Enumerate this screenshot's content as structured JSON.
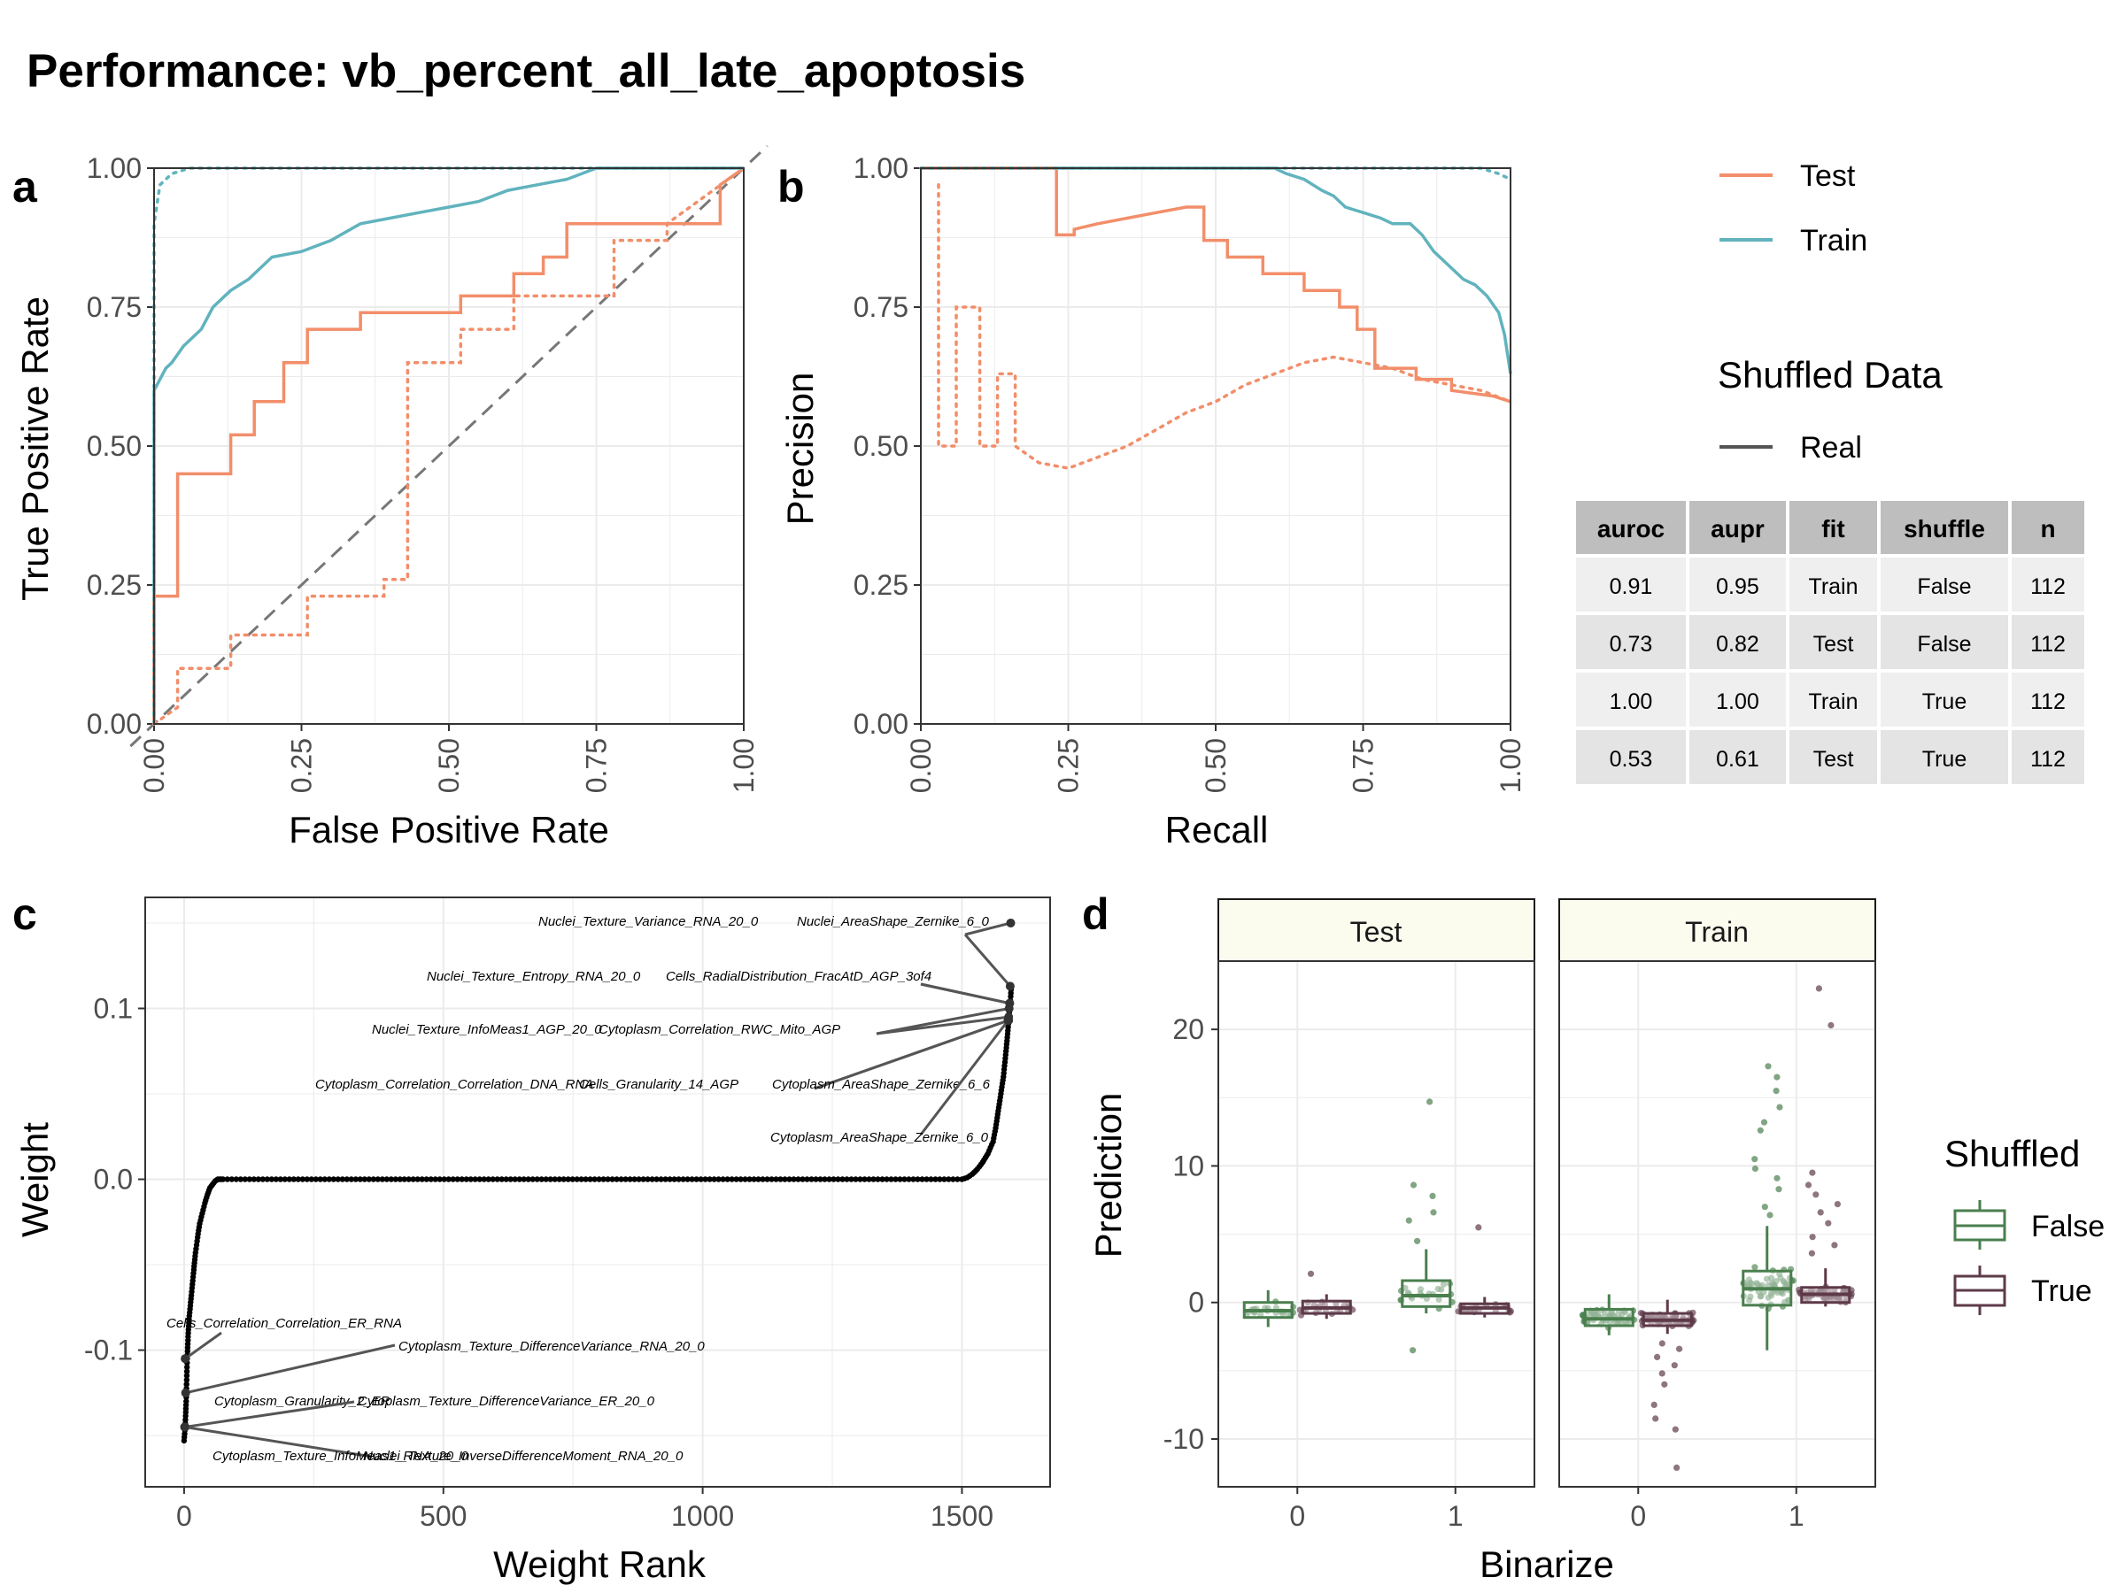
{
  "title": "Performance: vb_percent_all_late_apoptosis",
  "chart_data": [
    {
      "tag": "a",
      "type": "line",
      "xlabel": "False Positive Rate",
      "ylabel": "True Positive Rate",
      "xlim": [
        0,
        1
      ],
      "ylim": [
        0,
        1
      ],
      "xticks": [
        "0.00",
        "0.25",
        "0.50",
        "0.75",
        "1.00"
      ],
      "yticks": [
        "0.00",
        "0.25",
        "0.50",
        "0.75",
        "1.00"
      ],
      "reference_line": {
        "style": "dashed",
        "from": [
          0,
          0
        ],
        "to": [
          1,
          1
        ]
      },
      "grid": true,
      "series": [
        {
          "name": "Train",
          "shuffled": "False",
          "x": [
            0,
            0,
            0.01,
            0.02,
            0.03,
            0.05,
            0.08,
            0.1,
            0.13,
            0.16,
            0.2,
            0.25,
            0.3,
            0.35,
            0.4,
            0.45,
            0.5,
            0.55,
            0.6,
            0.65,
            0.7,
            0.75,
            0.8,
            0.9,
            1.0
          ],
          "y": [
            0,
            0.6,
            0.62,
            0.64,
            0.65,
            0.68,
            0.71,
            0.75,
            0.78,
            0.8,
            0.84,
            0.85,
            0.87,
            0.9,
            0.91,
            0.92,
            0.93,
            0.94,
            0.96,
            0.97,
            0.98,
            1.0,
            1.0,
            1.0,
            1.0
          ]
        },
        {
          "name": "Test",
          "shuffled": "False",
          "x": [
            0,
            0,
            0.04,
            0.04,
            0.13,
            0.13,
            0.17,
            0.17,
            0.22,
            0.22,
            0.26,
            0.26,
            0.35,
            0.35,
            0.52,
            0.52,
            0.61,
            0.61,
            0.66,
            0.66,
            0.7,
            0.7,
            0.96,
            0.96,
            1.0
          ],
          "y": [
            0,
            0.23,
            0.23,
            0.45,
            0.45,
            0.52,
            0.52,
            0.58,
            0.58,
            0.65,
            0.65,
            0.71,
            0.71,
            0.74,
            0.74,
            0.77,
            0.77,
            0.81,
            0.81,
            0.84,
            0.84,
            0.9,
            0.9,
            0.97,
            1.0
          ]
        },
        {
          "name": "Train",
          "shuffled": "True",
          "x": [
            0,
            0,
            0.01,
            0.03,
            0.06,
            0.1,
            1.0
          ],
          "y": [
            0,
            0.9,
            0.97,
            0.99,
            1.0,
            1.0,
            1.0
          ]
        },
        {
          "name": "Test",
          "shuffled": "True",
          "x": [
            0,
            0.04,
            0.04,
            0.13,
            0.13,
            0.26,
            0.26,
            0.39,
            0.39,
            0.43,
            0.43,
            0.52,
            0.52,
            0.61,
            0.61,
            0.78,
            0.78,
            0.87,
            0.87,
            1.0
          ],
          "y": [
            0,
            0.03,
            0.1,
            0.1,
            0.16,
            0.16,
            0.23,
            0.23,
            0.26,
            0.26,
            0.65,
            0.65,
            0.71,
            0.71,
            0.77,
            0.77,
            0.87,
            0.87,
            0.9,
            1.0
          ]
        }
      ]
    },
    {
      "tag": "b",
      "type": "line",
      "xlabel": "Recall",
      "ylabel": "Precision",
      "xlim": [
        0,
        1
      ],
      "ylim": [
        0,
        1
      ],
      "xticks": [
        "0.00",
        "0.25",
        "0.50",
        "0.75",
        "1.00"
      ],
      "yticks": [
        "0.00",
        "0.25",
        "0.50",
        "0.75",
        "1.00"
      ],
      "grid": true,
      "series": [
        {
          "name": "Train",
          "shuffled": "False",
          "x": [
            0,
            0.6,
            0.62,
            0.65,
            0.68,
            0.7,
            0.72,
            0.75,
            0.78,
            0.8,
            0.83,
            0.85,
            0.87,
            0.9,
            0.92,
            0.94,
            0.96,
            0.98,
            0.99,
            1.0
          ],
          "y": [
            1.0,
            1.0,
            0.99,
            0.98,
            0.96,
            0.95,
            0.93,
            0.92,
            0.91,
            0.9,
            0.9,
            0.88,
            0.85,
            0.82,
            0.8,
            0.79,
            0.77,
            0.74,
            0.7,
            0.63
          ]
        },
        {
          "name": "Test",
          "shuffled": "False",
          "x": [
            0,
            0.23,
            0.23,
            0.26,
            0.26,
            0.3,
            0.35,
            0.4,
            0.45,
            0.48,
            0.48,
            0.52,
            0.52,
            0.58,
            0.58,
            0.65,
            0.65,
            0.71,
            0.71,
            0.74,
            0.74,
            0.77,
            0.77,
            0.84,
            0.84,
            0.9,
            0.9,
            0.97,
            1.0
          ],
          "y": [
            1.0,
            1.0,
            0.88,
            0.88,
            0.89,
            0.9,
            0.91,
            0.92,
            0.93,
            0.93,
            0.87,
            0.87,
            0.84,
            0.84,
            0.81,
            0.81,
            0.78,
            0.78,
            0.75,
            0.75,
            0.71,
            0.71,
            0.64,
            0.64,
            0.62,
            0.62,
            0.6,
            0.59,
            0.58
          ]
        },
        {
          "name": "Train",
          "shuffled": "True",
          "x": [
            0,
            0.95,
            0.98,
            1.0
          ],
          "y": [
            1.0,
            1.0,
            0.99,
            0.98
          ]
        },
        {
          "name": "Test",
          "shuffled": "True",
          "x": [
            0.03,
            0.03,
            0.06,
            0.06,
            0.1,
            0.1,
            0.13,
            0.13,
            0.16,
            0.16,
            0.2,
            0.25,
            0.3,
            0.35,
            0.4,
            0.45,
            0.5,
            0.55,
            0.6,
            0.65,
            0.7,
            0.75,
            0.8,
            0.85,
            0.9,
            0.95,
            1.0
          ],
          "y": [
            0.97,
            0.5,
            0.5,
            0.75,
            0.75,
            0.5,
            0.5,
            0.63,
            0.63,
            0.5,
            0.47,
            0.46,
            0.48,
            0.5,
            0.53,
            0.56,
            0.58,
            0.61,
            0.63,
            0.65,
            0.66,
            0.65,
            0.64,
            0.62,
            0.61,
            0.6,
            0.58
          ]
        }
      ]
    },
    {
      "tag": "c",
      "type": "scatter",
      "xlabel": "Weight Rank",
      "ylabel": "Weight",
      "xlim": [
        -75,
        1670
      ],
      "ylim": [
        -0.18,
        0.165
      ],
      "xticks": [
        "0",
        "500",
        "1000",
        "1500"
      ],
      "yticks": [
        "-0.1",
        "0.0",
        "0.1"
      ],
      "grid": true,
      "curve": {
        "x": [
          0,
          2,
          4,
          6,
          8,
          10,
          14,
          18,
          22,
          26,
          30,
          35,
          40,
          45,
          50,
          55,
          60,
          65,
          70,
          75,
          1500,
          1510,
          1520,
          1530,
          1540,
          1550,
          1560,
          1565,
          1570,
          1575,
          1580,
          1585,
          1588,
          1590,
          1592,
          1594,
          1595
        ],
        "y": [
          -0.153,
          -0.145,
          -0.13,
          -0.105,
          -0.09,
          -0.08,
          -0.068,
          -0.055,
          -0.043,
          -0.034,
          -0.026,
          -0.02,
          -0.014,
          -0.009,
          -0.005,
          -0.003,
          -0.001,
          0.0,
          0.0,
          0.0,
          0.0,
          0.001,
          0.003,
          0.006,
          0.01,
          0.015,
          0.022,
          0.03,
          0.04,
          0.05,
          0.06,
          0.075,
          0.085,
          0.093,
          0.1,
          0.107,
          0.113
        ]
      },
      "annotations": [
        {
          "text": "Nuclei_Texture_Variance_RNA_20_0",
          "x": 1593,
          "y": 0.113
        },
        {
          "text": "Nuclei_AreaShape_Zernike_6_0",
          "x": 1594,
          "y": 0.15
        },
        {
          "text": "Nuclei_Texture_Entropy_RNA_20_0",
          "x": 1592,
          "y": 0.103
        },
        {
          "text": "Cells_RadialDistribution_FracAtD_AGP_3of4",
          "x": 1592,
          "y": 0.103
        },
        {
          "text": "Nuclei_Texture_InfoMeas1_AGP_20_0",
          "x": 1590,
          "y": 0.095
        },
        {
          "text": "Cytoplasm_Correlation_RWC_Mito_AGP",
          "x": 1591,
          "y": 0.1
        },
        {
          "text": "Cytoplasm_Correlation_Correlation_DNA_RNA",
          "x": 1590,
          "y": 0.093
        },
        {
          "text": "Cells_Granularity_14_AGP",
          "x": 1590,
          "y": 0.095
        },
        {
          "text": "Cytoplasm_AreaShape_Zernike_6_6",
          "x": 1589,
          "y": 0.093
        },
        {
          "text": "Cytoplasm_AreaShape_Zernike_6_0",
          "x": 1589,
          "y": 0.093
        },
        {
          "text": "Cells_Correlation_Correlation_ER_RNA",
          "x": 2,
          "y": -0.105
        },
        {
          "text": "Cytoplasm_Texture_DifferenceVariance_RNA_20_0",
          "x": 3,
          "y": -0.125
        },
        {
          "text": "Cytoplasm_Granularity_2_ER",
          "x": 2,
          "y": -0.128
        },
        {
          "text": "Cytoplasm_Texture_DifferenceVariance_ER_20_0",
          "x": 2,
          "y": -0.145
        },
        {
          "text": "Cytoplasm_Texture_InfoMeas1_RNA_20_0",
          "x": 1,
          "y": -0.145
        },
        {
          "text": "Nuclei_Texture_InverseDifferenceMoment_RNA_20_0",
          "x": 1,
          "y": -0.145
        }
      ]
    },
    {
      "tag": "d",
      "type": "box",
      "xlabel": "Binarize",
      "ylabel": "Prediction",
      "ylim": [
        -13.5,
        25
      ],
      "yticks": [
        "-10",
        "0",
        "10",
        "20"
      ],
      "facets": [
        "Test",
        "Train"
      ],
      "categories": [
        "0",
        "1"
      ],
      "grid": true,
      "boxes": [
        {
          "facet": "Test",
          "binarize": "0",
          "shuffled": "False",
          "q1": -1.1,
          "median": -0.6,
          "q3": 0.0,
          "lower": -1.8,
          "upper": 0.9
        },
        {
          "facet": "Test",
          "binarize": "0",
          "shuffled": "True",
          "q1": -0.8,
          "median": -0.4,
          "q3": 0.1,
          "lower": -1.2,
          "upper": 0.6
        },
        {
          "facet": "Test",
          "binarize": "1",
          "shuffled": "False",
          "q1": -0.3,
          "median": 0.5,
          "q3": 1.6,
          "lower": -0.8,
          "upper": 3.9
        },
        {
          "facet": "Test",
          "binarize": "1",
          "shuffled": "True",
          "q1": -0.8,
          "median": -0.4,
          "q3": -0.1,
          "lower": -1.1,
          "upper": 0.4
        },
        {
          "facet": "Train",
          "binarize": "0",
          "shuffled": "False",
          "q1": -1.7,
          "median": -1.2,
          "q3": -0.5,
          "lower": -2.4,
          "upper": 0.6
        },
        {
          "facet": "Train",
          "binarize": "0",
          "shuffled": "True",
          "q1": -1.7,
          "median": -1.3,
          "q3": -0.8,
          "lower": -2.3,
          "upper": 0.2
        },
        {
          "facet": "Train",
          "binarize": "1",
          "shuffled": "False",
          "q1": -0.2,
          "median": 1.0,
          "q3": 2.3,
          "lower": -3.5,
          "upper": 5.6
        },
        {
          "facet": "Train",
          "binarize": "1",
          "shuffled": "True",
          "q1": 0.0,
          "median": 0.6,
          "q3": 1.1,
          "lower": -0.3,
          "upper": 2.5
        }
      ],
      "outliers": [
        {
          "facet": "Test",
          "binarize": "1",
          "shuffled": "False",
          "values": [
            14.7,
            8.6,
            7.8,
            6.6,
            6.0,
            4.5,
            -3.5
          ]
        },
        {
          "facet": "Test",
          "binarize": "1",
          "shuffled": "True",
          "values": [
            5.5
          ]
        },
        {
          "facet": "Test",
          "binarize": "0",
          "shuffled": "True",
          "values": [
            2.1
          ]
        },
        {
          "facet": "Train",
          "binarize": "0",
          "shuffled": "True",
          "values": [
            -3.0,
            -4.0,
            -5.2,
            -6.0,
            -7.5,
            -8.5,
            -9.3,
            -12.1,
            -3.4,
            -4.6
          ]
        },
        {
          "facet": "Train",
          "binarize": "1",
          "shuffled": "False",
          "values": [
            17.3,
            16.5,
            15.5,
            14.3,
            13.2,
            12.6,
            10.5,
            9.8,
            9.1,
            8.3,
            7.0,
            6.4
          ]
        },
        {
          "facet": "Train",
          "binarize": "1",
          "shuffled": "True",
          "values": [
            23.0,
            20.3,
            9.5,
            8.6,
            7.9,
            7.2,
            6.6,
            5.8,
            4.8,
            4.2,
            3.6
          ]
        }
      ]
    }
  ],
  "legend": {
    "items": [
      {
        "label": "Test",
        "color": "#f28e6a"
      },
      {
        "label": "Train",
        "color": "#61b3bd"
      }
    ],
    "shuffled_data_title": "Shuffled Data",
    "shuffled_data_item": "Real",
    "shuffled_title": "Shuffled",
    "shuffled_items": [
      {
        "label": "False",
        "color": "#4a7f4e"
      },
      {
        "label": "True",
        "color": "#5e3a49"
      }
    ]
  },
  "table": {
    "headers": [
      "auroc",
      "aupr",
      "fit",
      "shuffle",
      "n"
    ],
    "rows": [
      [
        "0.91",
        "0.95",
        "Train",
        "False",
        "112"
      ],
      [
        "0.73",
        "0.82",
        "Test",
        "False",
        "112"
      ],
      [
        "1.00",
        "1.00",
        "Train",
        "True",
        "112"
      ],
      [
        "0.53",
        "0.61",
        "Test",
        "True",
        "112"
      ]
    ]
  },
  "colors": {
    "test": "#f28e6a",
    "train": "#61b3bd",
    "false_group": "#4a7f4e",
    "true_group": "#5e3a49",
    "strip_bg": "#fbfcee",
    "grid": "#ebebeb"
  }
}
